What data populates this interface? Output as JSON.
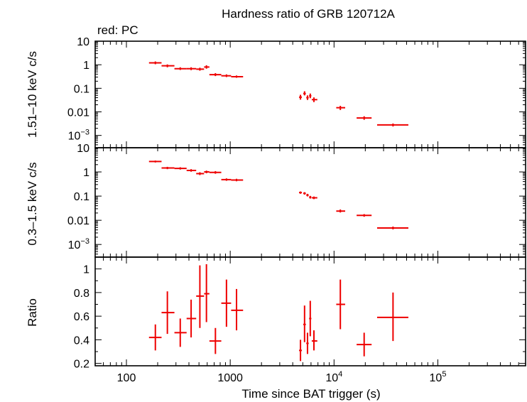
{
  "chart_data": {
    "type": "scatter",
    "title": "Hardness ratio of GRB 120712A",
    "legend": "red: PC",
    "xlabel": "Time since BAT trigger (s)",
    "x_scale": "log",
    "xlim": [
      50,
      700000
    ],
    "x_ticks": [
      {
        "value": 100,
        "label": "100",
        "exp": ""
      },
      {
        "value": 1000,
        "label": "1000",
        "exp": ""
      },
      {
        "value": 10000,
        "label": "10",
        "exp": "4"
      },
      {
        "value": 100000,
        "label": "10",
        "exp": "5"
      }
    ],
    "color": "#ee0000",
    "panels": [
      {
        "name": "hard",
        "ylabel": "1.51–10 keV c/s",
        "y_scale": "log",
        "ylim": [
          0.0003,
          10
        ],
        "y_ticks": [
          {
            "value": 10,
            "label": "10",
            "exp": ""
          },
          {
            "value": 1,
            "label": "1",
            "exp": ""
          },
          {
            "value": 0.1,
            "label": "0.1",
            "exp": ""
          },
          {
            "value": 0.01,
            "label": "0.01",
            "exp": ""
          },
          {
            "value": 0.001,
            "label": "10",
            "exp": "−3"
          }
        ],
        "points": [
          {
            "x": 190,
            "xlo": 165,
            "xhi": 218,
            "y": 1.2,
            "ylo": 1.05,
            "yhi": 1.38
          },
          {
            "x": 248,
            "xlo": 218,
            "xhi": 290,
            "y": 0.9,
            "ylo": 0.78,
            "yhi": 1.03
          },
          {
            "x": 330,
            "xlo": 290,
            "xhi": 380,
            "y": 0.68,
            "ylo": 0.6,
            "yhi": 0.78
          },
          {
            "x": 420,
            "xlo": 380,
            "xhi": 470,
            "y": 0.68,
            "ylo": 0.59,
            "yhi": 0.78
          },
          {
            "x": 510,
            "xlo": 470,
            "xhi": 560,
            "y": 0.65,
            "ylo": 0.56,
            "yhi": 0.75
          },
          {
            "x": 590,
            "xlo": 560,
            "xhi": 630,
            "y": 0.8,
            "ylo": 0.68,
            "yhi": 0.95
          },
          {
            "x": 720,
            "xlo": 630,
            "xhi": 820,
            "y": 0.38,
            "ylo": 0.33,
            "yhi": 0.44
          },
          {
            "x": 920,
            "xlo": 820,
            "xhi": 1020,
            "y": 0.34,
            "ylo": 0.3,
            "yhi": 0.39
          },
          {
            "x": 1150,
            "xlo": 1020,
            "xhi": 1330,
            "y": 0.31,
            "ylo": 0.28,
            "yhi": 0.35
          },
          {
            "x": 4750,
            "xlo": 4600,
            "xhi": 4900,
            "y": 0.042,
            "ylo": 0.033,
            "yhi": 0.053
          },
          {
            "x": 5200,
            "xlo": 5050,
            "xhi": 5350,
            "y": 0.06,
            "ylo": 0.05,
            "yhi": 0.075
          },
          {
            "x": 5550,
            "xlo": 5400,
            "xhi": 5700,
            "y": 0.04,
            "ylo": 0.032,
            "yhi": 0.05
          },
          {
            "x": 5900,
            "xlo": 5750,
            "xhi": 6050,
            "y": 0.048,
            "ylo": 0.038,
            "yhi": 0.06
          },
          {
            "x": 6400,
            "xlo": 6100,
            "xhi": 6900,
            "y": 0.033,
            "ylo": 0.026,
            "yhi": 0.041
          },
          {
            "x": 11500,
            "xlo": 10500,
            "xhi": 12800,
            "y": 0.015,
            "ylo": 0.012,
            "yhi": 0.018
          },
          {
            "x": 19500,
            "xlo": 16500,
            "xhi": 23000,
            "y": 0.0055,
            "ylo": 0.0046,
            "yhi": 0.0065
          },
          {
            "x": 37000,
            "xlo": 26000,
            "xhi": 52000,
            "y": 0.0028,
            "ylo": 0.0024,
            "yhi": 0.0032
          }
        ]
      },
      {
        "name": "soft",
        "ylabel": "0.3–1.5 keV c/s",
        "y_scale": "log",
        "ylim": [
          0.0003,
          10
        ],
        "y_ticks": [
          {
            "value": 10,
            "label": "10",
            "exp": ""
          },
          {
            "value": 1,
            "label": "1",
            "exp": ""
          },
          {
            "value": 0.1,
            "label": "0.1",
            "exp": ""
          },
          {
            "value": 0.01,
            "label": "0.01",
            "exp": ""
          },
          {
            "value": 0.001,
            "label": "10",
            "exp": "−3"
          }
        ],
        "points": [
          {
            "x": 190,
            "xlo": 165,
            "xhi": 218,
            "y": 2.7,
            "ylo": 2.45,
            "yhi": 2.95
          },
          {
            "x": 248,
            "xlo": 218,
            "xhi": 290,
            "y": 1.45,
            "ylo": 1.3,
            "yhi": 1.62
          },
          {
            "x": 330,
            "xlo": 290,
            "xhi": 380,
            "y": 1.4,
            "ylo": 1.25,
            "yhi": 1.56
          },
          {
            "x": 420,
            "xlo": 380,
            "xhi": 470,
            "y": 1.15,
            "ylo": 1.02,
            "yhi": 1.3
          },
          {
            "x": 510,
            "xlo": 470,
            "xhi": 560,
            "y": 0.85,
            "ylo": 0.74,
            "yhi": 0.97
          },
          {
            "x": 590,
            "xlo": 560,
            "xhi": 630,
            "y": 1.0,
            "ylo": 0.88,
            "yhi": 1.13
          },
          {
            "x": 720,
            "xlo": 630,
            "xhi": 820,
            "y": 0.95,
            "ylo": 0.84,
            "yhi": 1.08
          },
          {
            "x": 920,
            "xlo": 820,
            "xhi": 1020,
            "y": 0.48,
            "ylo": 0.43,
            "yhi": 0.54
          },
          {
            "x": 1150,
            "xlo": 1020,
            "xhi": 1330,
            "y": 0.46,
            "ylo": 0.41,
            "yhi": 0.52
          },
          {
            "x": 4750,
            "xlo": 4600,
            "xhi": 4900,
            "y": 0.14,
            "ylo": 0.125,
            "yhi": 0.155
          },
          {
            "x": 5200,
            "xlo": 5050,
            "xhi": 5350,
            "y": 0.13,
            "ylo": 0.115,
            "yhi": 0.145
          },
          {
            "x": 5550,
            "xlo": 5400,
            "xhi": 5700,
            "y": 0.11,
            "ylo": 0.097,
            "yhi": 0.124
          },
          {
            "x": 5900,
            "xlo": 5750,
            "xhi": 6050,
            "y": 0.09,
            "ylo": 0.079,
            "yhi": 0.102
          },
          {
            "x": 6400,
            "xlo": 6100,
            "xhi": 6900,
            "y": 0.085,
            "ylo": 0.075,
            "yhi": 0.096
          },
          {
            "x": 11500,
            "xlo": 10500,
            "xhi": 12800,
            "y": 0.024,
            "ylo": 0.021,
            "yhi": 0.028
          },
          {
            "x": 19500,
            "xlo": 16500,
            "xhi": 23000,
            "y": 0.016,
            "ylo": 0.014,
            "yhi": 0.018
          },
          {
            "x": 37000,
            "xlo": 26000,
            "xhi": 52000,
            "y": 0.0048,
            "ylo": 0.0042,
            "yhi": 0.0055
          }
        ]
      },
      {
        "name": "ratio",
        "ylabel": "Ratio",
        "y_scale": "linear",
        "ylim": [
          0.18,
          1.1
        ],
        "y_ticks": [
          {
            "value": 0.2,
            "label": "0.2",
            "exp": ""
          },
          {
            "value": 0.4,
            "label": "0.4",
            "exp": ""
          },
          {
            "value": 0.6,
            "label": "0.6",
            "exp": ""
          },
          {
            "value": 0.8,
            "label": "0.8",
            "exp": ""
          },
          {
            "value": 1,
            "label": "1",
            "exp": ""
          }
        ],
        "points": [
          {
            "x": 190,
            "xlo": 165,
            "xhi": 218,
            "y": 0.42,
            "ylo": 0.31,
            "yhi": 0.53
          },
          {
            "x": 248,
            "xlo": 218,
            "xhi": 290,
            "y": 0.63,
            "ylo": 0.45,
            "yhi": 0.81
          },
          {
            "x": 330,
            "xlo": 290,
            "xhi": 380,
            "y": 0.46,
            "ylo": 0.34,
            "yhi": 0.58
          },
          {
            "x": 420,
            "xlo": 380,
            "xhi": 470,
            "y": 0.58,
            "ylo": 0.42,
            "yhi": 0.74
          },
          {
            "x": 510,
            "xlo": 470,
            "xhi": 560,
            "y": 0.77,
            "ylo": 0.5,
            "yhi": 1.03
          },
          {
            "x": 590,
            "xlo": 560,
            "xhi": 630,
            "y": 0.79,
            "ylo": 0.55,
            "yhi": 1.04
          },
          {
            "x": 720,
            "xlo": 630,
            "xhi": 820,
            "y": 0.39,
            "ylo": 0.28,
            "yhi": 0.5
          },
          {
            "x": 920,
            "xlo": 820,
            "xhi": 1020,
            "y": 0.71,
            "ylo": 0.51,
            "yhi": 0.91
          },
          {
            "x": 1150,
            "xlo": 1020,
            "xhi": 1330,
            "y": 0.65,
            "ylo": 0.48,
            "yhi": 0.83
          },
          {
            "x": 4750,
            "xlo": 4600,
            "xhi": 4900,
            "y": 0.31,
            "ylo": 0.22,
            "yhi": 0.4
          },
          {
            "x": 5200,
            "xlo": 5050,
            "xhi": 5350,
            "y": 0.53,
            "ylo": 0.38,
            "yhi": 0.69
          },
          {
            "x": 5550,
            "xlo": 5400,
            "xhi": 5700,
            "y": 0.37,
            "ylo": 0.28,
            "yhi": 0.46
          },
          {
            "x": 5900,
            "xlo": 5750,
            "xhi": 6050,
            "y": 0.58,
            "ylo": 0.43,
            "yhi": 0.73
          },
          {
            "x": 6400,
            "xlo": 6100,
            "xhi": 6900,
            "y": 0.39,
            "ylo": 0.31,
            "yhi": 0.48
          },
          {
            "x": 11500,
            "xlo": 10500,
            "xhi": 12800,
            "y": 0.7,
            "ylo": 0.49,
            "yhi": 0.91
          },
          {
            "x": 19500,
            "xlo": 16500,
            "xhi": 23000,
            "y": 0.36,
            "ylo": 0.26,
            "yhi": 0.46
          },
          {
            "x": 37000,
            "xlo": 26000,
            "xhi": 52000,
            "y": 0.59,
            "ylo": 0.39,
            "yhi": 0.8
          }
        ]
      }
    ]
  }
}
